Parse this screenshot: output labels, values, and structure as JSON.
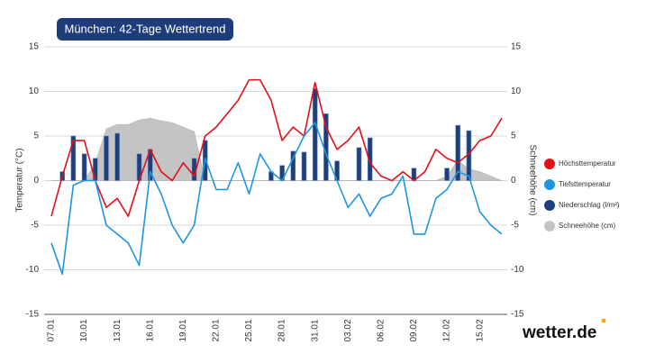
{
  "chart_data": {
    "type": "combo",
    "title": "München: 42-Tage Wettertrend",
    "y_label": "Temperatur (°C)",
    "y2_label": "Schneehöhe (cm)",
    "logo": "wetter.de",
    "categories": [
      "07.01",
      null,
      null,
      "10.01",
      null,
      null,
      "13.01",
      null,
      null,
      "16.01",
      null,
      null,
      "19.01",
      null,
      null,
      "22.01",
      null,
      null,
      "25.01",
      null,
      null,
      "28.01",
      null,
      null,
      "31.01",
      null,
      null,
      "03.02",
      null,
      null,
      "06.02",
      null,
      null,
      "09.02",
      null,
      null,
      "12.02",
      null,
      null,
      "15.02",
      null,
      null
    ],
    "ylim": [
      -15,
      15
    ],
    "yticks": [
      -15,
      -10,
      -5,
      0,
      5,
      10,
      15
    ],
    "y2lim": [
      -15,
      15
    ],
    "y2ticks": [
      -15,
      -10,
      -5,
      0,
      5,
      10,
      15
    ],
    "grid": true,
    "series": [
      {
        "name": "Höchsttemperatur",
        "type": "line",
        "color": "#e3101a",
        "values": [
          -4,
          0.5,
          4.5,
          4.5,
          0,
          -3,
          -2,
          -4,
          0,
          3.5,
          1,
          0,
          2,
          0.5,
          5,
          6,
          7.5,
          9,
          11.3,
          11.3,
          9,
          4.5,
          6,
          5,
          11,
          6,
          3.5,
          4.5,
          6,
          2,
          0.5,
          0,
          1,
          0,
          1,
          3.5,
          2.5,
          2,
          3,
          4.5,
          5,
          7
        ]
      },
      {
        "name": "Tiefsttemperatur",
        "type": "line",
        "color": "#1e96e0",
        "values": [
          -7,
          -10.5,
          -0.5,
          0,
          0,
          -5,
          -6,
          -7,
          -9.5,
          1,
          -1.5,
          -5,
          -7,
          -5,
          2.5,
          -1,
          -1,
          2,
          -1.5,
          3,
          1,
          0,
          2.5,
          5,
          6.5,
          3,
          0,
          -3,
          -1.5,
          -4,
          -2,
          -1.5,
          0.5,
          -6,
          -6,
          -2,
          -1,
          1,
          0.5,
          -3.5,
          -5,
          -6
        ]
      },
      {
        "name": "Niederschlag (l/m²)",
        "type": "bar",
        "color": "#1f3f7a",
        "values": [
          0,
          1,
          5,
          3,
          2.5,
          5,
          5.3,
          0,
          3,
          3.5,
          0,
          0,
          0,
          2.5,
          4.5,
          0,
          0,
          0,
          0,
          0,
          1,
          1.7,
          3.3,
          3.2,
          10.3,
          7.5,
          2.2,
          0,
          3.7,
          4.8,
          0,
          0,
          0,
          1.4,
          0,
          0,
          1.4,
          6.2,
          5.6,
          0,
          0,
          0
        ]
      },
      {
        "name": "Schneehöhe (cm)",
        "type": "area",
        "axis": "y2",
        "color": "#c4c4c4",
        "values": [
          0,
          0,
          0,
          0,
          2,
          5.8,
          6.3,
          6.3,
          6.8,
          7,
          6.7,
          6.5,
          6,
          5.5,
          0,
          0,
          0,
          0,
          0,
          0,
          0,
          0,
          0,
          0,
          0,
          0,
          0,
          0,
          0,
          0,
          0,
          0,
          0,
          0,
          0,
          0,
          0.5,
          2.3,
          1.3,
          1,
          0.5,
          0
        ]
      }
    ]
  }
}
